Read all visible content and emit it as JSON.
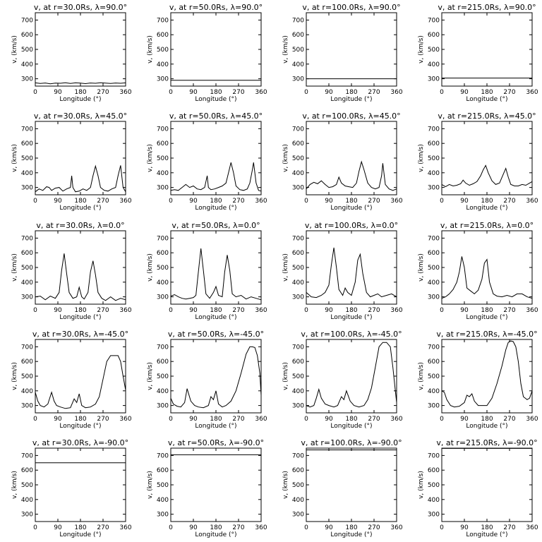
{
  "chart_data": [
    {
      "type": "line",
      "title": "v, at r=30.0Rs, λ=90.0°",
      "xlabel": "Longitude (°)",
      "ylabel": "v, (km/s)",
      "xlim": [
        0,
        360
      ],
      "ylim": [
        250,
        750
      ],
      "xticks": [
        0,
        90,
        180,
        270,
        360
      ],
      "yticks": [
        300,
        400,
        500,
        600,
        700
      ],
      "x": [
        0,
        20,
        40,
        60,
        80,
        100,
        120,
        140,
        160,
        180,
        200,
        220,
        240,
        260,
        280,
        300,
        320,
        340,
        360
      ],
      "y": [
        272,
        268,
        271,
        266,
        270,
        269,
        273,
        268,
        272,
        270,
        267,
        271,
        269,
        273,
        270,
        268,
        271,
        269,
        272
      ]
    },
    {
      "type": "line",
      "title": "v, at r=50.0Rs, λ=90.0°",
      "xlabel": "Longitude (°)",
      "ylabel": "v, (km/s)",
      "xlim": [
        0,
        360
      ],
      "ylim": [
        250,
        750
      ],
      "xticks": [
        0,
        90,
        180,
        270,
        360
      ],
      "yticks": [
        300,
        400,
        500,
        600,
        700
      ],
      "x": [
        0,
        360
      ],
      "y": [
        290,
        290
      ]
    },
    {
      "type": "line",
      "title": "v, at r=100.0Rs, λ=90.0°",
      "xlabel": "Longitude (°)",
      "ylabel": "v, (km/s)",
      "xlim": [
        0,
        360
      ],
      "ylim": [
        250,
        750
      ],
      "xticks": [
        0,
        90,
        180,
        270,
        360
      ],
      "yticks": [
        300,
        400,
        500,
        600,
        700
      ],
      "x": [
        0,
        360
      ],
      "y": [
        300,
        300
      ]
    },
    {
      "type": "line",
      "title": "v, at r=215.0Rs, λ=90.0°",
      "xlabel": "Longitude (°)",
      "ylabel": "v, (km/s)",
      "xlim": [
        0,
        360
      ],
      "ylim": [
        250,
        750
      ],
      "xticks": [
        0,
        90,
        180,
        270,
        360
      ],
      "yticks": [
        300,
        400,
        500,
        600,
        700
      ],
      "x": [
        0,
        360
      ],
      "y": [
        305,
        305
      ]
    },
    {
      "type": "line",
      "title": "v, at r=30.0Rs, λ=45.0°",
      "xlabel": "Longitude (°)",
      "ylabel": "v, (km/s)",
      "xlim": [
        0,
        360
      ],
      "ylim": [
        250,
        750
      ],
      "xticks": [
        0,
        90,
        180,
        270,
        360
      ],
      "yticks": [
        300,
        400,
        500,
        600,
        700
      ],
      "x": [
        0,
        15,
        30,
        45,
        55,
        65,
        80,
        95,
        110,
        125,
        140,
        145,
        150,
        160,
        175,
        190,
        205,
        220,
        230,
        240,
        250,
        260,
        275,
        290,
        305,
        320,
        330,
        340,
        350,
        360
      ],
      "y": [
        270,
        290,
        280,
        305,
        300,
        280,
        295,
        300,
        275,
        290,
        300,
        380,
        300,
        270,
        275,
        290,
        280,
        300,
        380,
        445,
        380,
        300,
        280,
        275,
        290,
        300,
        380,
        450,
        300,
        270
      ]
    },
    {
      "type": "line",
      "title": "v, at r=50.0Rs, λ=45.0°",
      "xlabel": "Longitude (°)",
      "ylabel": "v, (km/s)",
      "xlim": [
        0,
        360
      ],
      "ylim": [
        250,
        750
      ],
      "xticks": [
        0,
        90,
        180,
        270,
        360
      ],
      "yticks": [
        300,
        400,
        500,
        600,
        700
      ],
      "x": [
        0,
        15,
        30,
        45,
        60,
        75,
        90,
        105,
        120,
        135,
        145,
        150,
        160,
        175,
        190,
        205,
        220,
        230,
        240,
        250,
        260,
        275,
        290,
        305,
        315,
        325,
        330,
        340,
        350,
        360
      ],
      "y": [
        280,
        285,
        280,
        300,
        320,
        300,
        310,
        290,
        285,
        300,
        380,
        300,
        285,
        290,
        300,
        310,
        330,
        400,
        470,
        400,
        310,
        285,
        280,
        290,
        330,
        420,
        470,
        330,
        280,
        275
      ]
    },
    {
      "type": "line",
      "title": "v, at r=100.0Rs, λ=45.0°",
      "xlabel": "Longitude (°)",
      "ylabel": "v, (km/s)",
      "xlim": [
        0,
        360
      ],
      "ylim": [
        250,
        750
      ],
      "xticks": [
        0,
        90,
        180,
        270,
        360
      ],
      "yticks": [
        300,
        400,
        500,
        600,
        700
      ],
      "x": [
        0,
        15,
        30,
        45,
        60,
        75,
        90,
        105,
        120,
        130,
        140,
        155,
        170,
        185,
        200,
        210,
        220,
        230,
        245,
        260,
        275,
        290,
        300,
        305,
        315,
        330,
        345,
        360
      ],
      "y": [
        290,
        320,
        335,
        325,
        345,
        320,
        300,
        305,
        320,
        370,
        330,
        310,
        305,
        300,
        330,
        410,
        475,
        420,
        330,
        300,
        290,
        300,
        380,
        465,
        320,
        290,
        280,
        290
      ]
    },
    {
      "type": "line",
      "title": "v, at r=215.0Rs, λ=45.0°",
      "xlabel": "Longitude (°)",
      "ylabel": "v, (km/s)",
      "xlim": [
        0,
        360
      ],
      "ylim": [
        250,
        750
      ],
      "xticks": [
        0,
        90,
        180,
        270,
        360
      ],
      "yticks": [
        300,
        400,
        500,
        600,
        700
      ],
      "x": [
        0,
        15,
        30,
        45,
        60,
        75,
        85,
        95,
        110,
        125,
        140,
        155,
        165,
        175,
        185,
        200,
        215,
        230,
        245,
        255,
        265,
        275,
        290,
        305,
        320,
        335,
        350,
        360
      ],
      "y": [
        320,
        305,
        320,
        310,
        315,
        325,
        350,
        330,
        315,
        325,
        340,
        380,
        420,
        450,
        400,
        345,
        320,
        330,
        390,
        430,
        370,
        320,
        310,
        310,
        320,
        315,
        330,
        340
      ]
    },
    {
      "type": "line",
      "title": "v, at r=30.0Rs, λ=0.0°",
      "xlabel": "Longitude (°)",
      "ylabel": "v, (km/s)",
      "xlim": [
        0,
        360
      ],
      "ylim": [
        250,
        750
      ],
      "xticks": [
        0,
        90,
        180,
        270,
        360
      ],
      "yticks": [
        300,
        400,
        500,
        600,
        700
      ],
      "x": [
        0,
        20,
        40,
        60,
        80,
        95,
        105,
        115,
        125,
        135,
        150,
        165,
        175,
        185,
        195,
        210,
        220,
        230,
        240,
        250,
        265,
        280,
        300,
        320,
        340,
        360
      ],
      "y": [
        300,
        305,
        280,
        305,
        290,
        330,
        480,
        595,
        460,
        330,
        290,
        300,
        365,
        300,
        285,
        330,
        470,
        545,
        450,
        330,
        290,
        275,
        300,
        275,
        290,
        280
      ]
    },
    {
      "type": "line",
      "title": "v, at r=50.0Rs, λ=0.0°",
      "xlabel": "Longitude (°)",
      "ylabel": "v, (km/s)",
      "xlim": [
        0,
        360
      ],
      "ylim": [
        250,
        750
      ],
      "xticks": [
        0,
        90,
        180,
        270,
        360
      ],
      "yticks": [
        300,
        400,
        500,
        600,
        700
      ],
      "x": [
        0,
        15,
        30,
        45,
        60,
        75,
        90,
        100,
        110,
        120,
        130,
        140,
        155,
        170,
        180,
        190,
        205,
        215,
        225,
        235,
        245,
        260,
        280,
        300,
        320,
        340,
        360
      ],
      "y": [
        305,
        315,
        300,
        290,
        285,
        290,
        295,
        310,
        470,
        630,
        480,
        320,
        290,
        330,
        370,
        310,
        300,
        470,
        585,
        480,
        320,
        300,
        310,
        285,
        300,
        290,
        280
      ]
    },
    {
      "type": "line",
      "title": "v, at r=100.0Rs, λ=0.0°",
      "xlabel": "Longitude (°)",
      "ylabel": "v, (km/s)",
      "xlim": [
        0,
        360
      ],
      "ylim": [
        250,
        750
      ],
      "xticks": [
        0,
        90,
        180,
        270,
        360
      ],
      "yticks": [
        300,
        400,
        500,
        600,
        700
      ],
      "x": [
        0,
        20,
        40,
        60,
        75,
        90,
        100,
        110,
        120,
        130,
        145,
        155,
        165,
        180,
        195,
        205,
        215,
        225,
        240,
        255,
        270,
        285,
        300,
        320,
        340,
        360
      ],
      "y": [
        330,
        300,
        295,
        310,
        330,
        380,
        520,
        635,
        500,
        350,
        310,
        360,
        330,
        310,
        400,
        550,
        590,
        460,
        330,
        300,
        310,
        320,
        300,
        310,
        320,
        300
      ]
    },
    {
      "type": "line",
      "title": "v, at r=215.0Rs, λ=0.0°",
      "xlabel": "Longitude (°)",
      "ylabel": "v, (km/s)",
      "xlim": [
        0,
        360
      ],
      "ylim": [
        250,
        750
      ],
      "xticks": [
        0,
        90,
        180,
        270,
        360
      ],
      "yticks": [
        300,
        400,
        500,
        600,
        700
      ],
      "x": [
        0,
        15,
        30,
        45,
        60,
        70,
        80,
        90,
        100,
        115,
        130,
        145,
        160,
        170,
        180,
        190,
        205,
        220,
        240,
        260,
        280,
        300,
        320,
        340,
        360
      ],
      "y": [
        290,
        300,
        320,
        350,
        400,
        470,
        575,
        500,
        360,
        340,
        320,
        345,
        420,
        530,
        555,
        400,
        320,
        305,
        300,
        310,
        300,
        320,
        320,
        300,
        290
      ]
    },
    {
      "type": "line",
      "title": "v, at r=30.0Rs, λ=-45.0°",
      "xlabel": "Longitude (°)",
      "ylabel": "v, (km/s)",
      "xlim": [
        0,
        360
      ],
      "ylim": [
        250,
        750
      ],
      "xticks": [
        0,
        90,
        180,
        270,
        360
      ],
      "yticks": [
        300,
        400,
        500,
        600,
        700
      ],
      "x": [
        0,
        10,
        20,
        35,
        50,
        65,
        75,
        85,
        100,
        120,
        140,
        155,
        165,
        175,
        185,
        200,
        220,
        240,
        255,
        270,
        285,
        300,
        315,
        330,
        340,
        350,
        360
      ],
      "y": [
        390,
        330,
        300,
        290,
        310,
        390,
        330,
        300,
        290,
        280,
        285,
        345,
        320,
        380,
        300,
        285,
        290,
        310,
        360,
        480,
        600,
        640,
        640,
        640,
        600,
        500,
        405
      ]
    },
    {
      "type": "line",
      "title": "v, at r=50.0Rs, λ=-45.0°",
      "xlabel": "Longitude (°)",
      "ylabel": "v, (km/s)",
      "xlim": [
        0,
        360
      ],
      "ylim": [
        250,
        750
      ],
      "xticks": [
        0,
        90,
        180,
        270,
        360
      ],
      "yticks": [
        300,
        400,
        500,
        600,
        700
      ],
      "x": [
        0,
        10,
        25,
        40,
        55,
        65,
        80,
        95,
        110,
        130,
        150,
        160,
        170,
        180,
        190,
        205,
        220,
        240,
        260,
        280,
        300,
        315,
        325,
        335,
        345,
        355,
        360
      ],
      "y": [
        350,
        310,
        295,
        290,
        320,
        415,
        330,
        300,
        290,
        285,
        300,
        360,
        340,
        400,
        310,
        290,
        300,
        330,
        400,
        520,
        650,
        700,
        700,
        695,
        640,
        520,
        370
      ]
    },
    {
      "type": "line",
      "title": "v, at r=100.0Rs, λ=-45.0°",
      "xlabel": "Longitude (°)",
      "ylabel": "v, (km/s)",
      "xlim": [
        0,
        360
      ],
      "ylim": [
        250,
        750
      ],
      "xticks": [
        0,
        90,
        180,
        270,
        360
      ],
      "yticks": [
        300,
        400,
        500,
        600,
        700
      ],
      "x": [
        0,
        15,
        30,
        40,
        50,
        60,
        75,
        90,
        110,
        125,
        140,
        150,
        160,
        175,
        190,
        210,
        230,
        245,
        260,
        275,
        290,
        305,
        320,
        335,
        345,
        355,
        360
      ],
      "y": [
        300,
        290,
        300,
        350,
        410,
        350,
        310,
        300,
        290,
        300,
        360,
        340,
        400,
        330,
        300,
        290,
        300,
        340,
        420,
        560,
        700,
        730,
        730,
        700,
        560,
        400,
        320
      ]
    },
    {
      "type": "line",
      "title": "v, at r=215.0Rs, λ=-45.0°",
      "xlabel": "Longitude (°)",
      "ylabel": "v, (km/s)",
      "xlim": [
        0,
        360
      ],
      "ylim": [
        250,
        750
      ],
      "xticks": [
        0,
        90,
        180,
        270,
        360
      ],
      "yticks": [
        300,
        400,
        500,
        600,
        700
      ],
      "x": [
        0,
        10,
        20,
        35,
        50,
        70,
        90,
        100,
        110,
        120,
        130,
        145,
        160,
        180,
        200,
        220,
        240,
        255,
        265,
        275,
        285,
        295,
        305,
        315,
        325,
        340,
        350,
        360
      ],
      "y": [
        400,
        390,
        340,
        300,
        290,
        295,
        320,
        370,
        360,
        380,
        330,
        300,
        300,
        300,
        350,
        450,
        570,
        680,
        730,
        740,
        735,
        700,
        600,
        450,
        360,
        340,
        350,
        400
      ]
    },
    {
      "type": "line",
      "title": "v, at r=30.0Rs, λ=-90.0°",
      "xlabel": "Longitude (°)",
      "ylabel": "v, (km/s)",
      "xlim": [
        0,
        360
      ],
      "ylim": [
        250,
        750
      ],
      "xticks": [
        0,
        90,
        180,
        270,
        360
      ],
      "yticks": [
        300,
        400,
        500,
        600,
        700
      ],
      "x": [
        0,
        360
      ],
      "y": [
        650,
        650
      ]
    },
    {
      "type": "line",
      "title": "v, at r=50.0Rs, λ=-90.0°",
      "xlabel": "Longitude (°)",
      "ylabel": "v, (km/s)",
      "xlim": [
        0,
        360
      ],
      "ylim": [
        250,
        750
      ],
      "xticks": [
        0,
        90,
        180,
        270,
        360
      ],
      "yticks": [
        300,
        400,
        500,
        600,
        700
      ],
      "x": [
        0,
        360
      ],
      "y": [
        705,
        705
      ]
    },
    {
      "type": "line",
      "title": "v, at r=100.0Rs, λ=-90.0°",
      "xlabel": "Longitude (°)",
      "ylabel": "v, (km/s)",
      "xlim": [
        0,
        360
      ],
      "ylim": [
        250,
        750
      ],
      "xticks": [
        0,
        90,
        180,
        270,
        360
      ],
      "yticks": [
        300,
        400,
        500,
        600,
        700
      ],
      "x": [
        0,
        360
      ],
      "y": [
        738,
        738
      ]
    },
    {
      "type": "line",
      "title": "v, at r=215.0Rs, λ=-90.0°",
      "xlabel": "Longitude (°)",
      "ylabel": "v, (km/s)",
      "xlim": [
        0,
        360
      ],
      "ylim": [
        250,
        750
      ],
      "xticks": [
        0,
        90,
        180,
        270,
        360
      ],
      "yticks": [
        300,
        400,
        500,
        600,
        700
      ],
      "x": [
        0,
        360
      ],
      "y": [
        748,
        748
      ]
    }
  ]
}
